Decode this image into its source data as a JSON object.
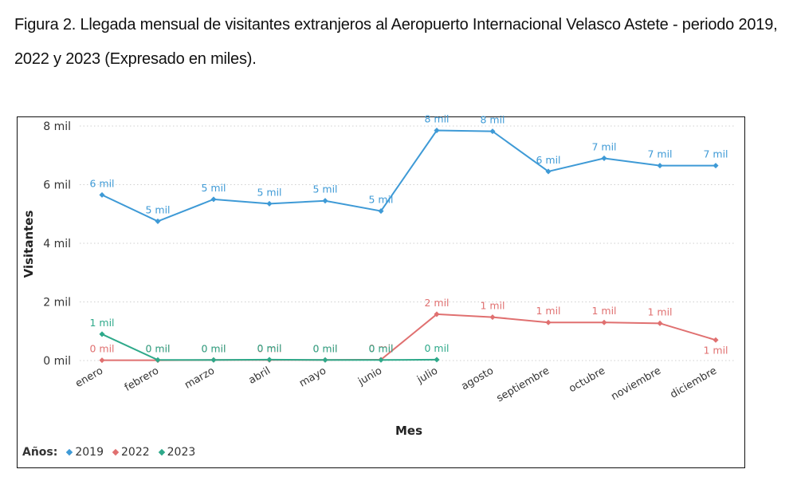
{
  "caption": {
    "line1": "Figura 2. Llegada mensual de visitantes extranjeros al Aeropuerto Internacional Velasco Astete - periodo 2019,",
    "line2": "2022 y 2023 (Expresado en miles)."
  },
  "chart_data": {
    "type": "line",
    "xlabel": "Mes",
    "ylabel": "Visitantes",
    "ylim": [
      0,
      8
    ],
    "yticks": [
      "0 mil",
      "2 mil",
      "4 mil",
      "6 mil",
      "8 mil"
    ],
    "grid": true,
    "legend_title": "Años:",
    "legend_position": "bottom-left",
    "categories": [
      "enero",
      "febrero",
      "marzo",
      "abril",
      "mayo",
      "junio",
      "julio",
      "agosto",
      "septiembre",
      "octubre",
      "noviembre",
      "diciembre"
    ],
    "series": [
      {
        "name": "2019",
        "color": "#3e9ad6",
        "values": [
          5.65,
          4.75,
          5.5,
          5.35,
          5.45,
          5.1,
          7.85,
          7.82,
          6.45,
          6.9,
          6.65,
          6.65
        ],
        "labels": [
          "6 mil",
          "5 mil",
          "5 mil",
          "5 mil",
          "5 mil",
          "5 mil",
          "8 mil",
          "8 mil",
          "6 mil",
          "7 mil",
          "7 mil",
          "7 mil"
        ]
      },
      {
        "name": "2022",
        "color": "#e07070",
        "values": [
          0.01,
          0.01,
          0.02,
          0.02,
          0.02,
          0.03,
          1.58,
          1.48,
          1.3,
          1.3,
          1.27,
          0.7
        ],
        "labels": [
          "0 mil",
          "0 mil",
          "0 mil",
          "0 mil",
          "0 mil",
          "0 mil",
          "2 mil",
          "1 mil",
          "1 mil",
          "1 mil",
          "1 mil",
          "1 mil"
        ]
      },
      {
        "name": "2023",
        "color": "#2ea98a",
        "values": [
          0.9,
          0.02,
          0.02,
          0.03,
          0.02,
          0.02,
          0.03,
          null,
          null,
          null,
          null,
          null
        ],
        "labels": [
          "1 mil",
          "0 mil",
          "0 mil",
          "0 mil",
          "0 mil",
          "0 mil",
          "0 mil",
          null,
          null,
          null,
          null,
          null
        ]
      }
    ]
  }
}
